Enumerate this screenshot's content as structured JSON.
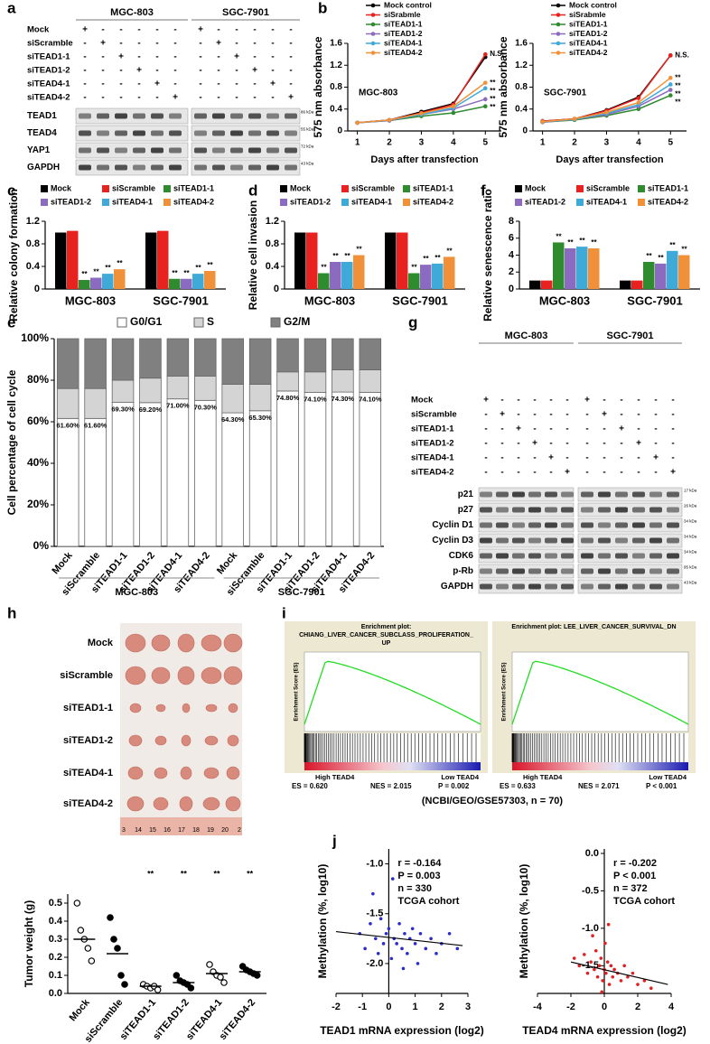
{
  "chart_data": [
    {
      "type": "line",
      "label": "MGC-803",
      "x": [
        1,
        2,
        3,
        4,
        5
      ],
      "xlim": [
        0.7,
        5.5
      ],
      "xticks": [
        1,
        2,
        3,
        4,
        5
      ],
      "ylim": [
        0,
        1.6
      ],
      "yticks": [
        0,
        0.4,
        0.8,
        1.2,
        1.6
      ],
      "xlabel": "Days after transfection",
      "ylabel": "575 nm absorbance",
      "series": [
        {
          "name": "Mock control",
          "color": "#000000",
          "values": [
            0.15,
            0.2,
            0.35,
            0.5,
            1.35
          ]
        },
        {
          "name": "siSrabmle",
          "color": "#e8231f",
          "values": [
            0.15,
            0.2,
            0.33,
            0.48,
            1.4
          ]
        },
        {
          "name": "siTEAD1-1",
          "color": "#2e8b2e",
          "values": [
            0.15,
            0.19,
            0.27,
            0.33,
            0.45
          ]
        },
        {
          "name": "siTEAD1-2",
          "color": "#8a6bbf",
          "values": [
            0.15,
            0.19,
            0.3,
            0.4,
            0.58
          ]
        },
        {
          "name": "siTEAD4-1",
          "color": "#3fa9d8",
          "values": [
            0.15,
            0.2,
            0.3,
            0.42,
            0.78
          ]
        },
        {
          "name": "siTEAD4-2",
          "color": "#f0913a",
          "values": [
            0.15,
            0.2,
            0.32,
            0.45,
            0.88
          ]
        }
      ],
      "annotations": [
        "N.S.",
        "**",
        "**",
        "**",
        "**"
      ]
    },
    {
      "type": "line",
      "label": "SGC-7901",
      "x": [
        1,
        2,
        3,
        4,
        5
      ],
      "xlim": [
        0.7,
        5.5
      ],
      "xticks": [
        1,
        2,
        3,
        4,
        5
      ],
      "ylim": [
        0,
        1.6
      ],
      "yticks": [
        0,
        0.4,
        0.8,
        1.2,
        1.6
      ],
      "xlabel": "Days after transfection",
      "ylabel": "575 nm absorbance",
      "series": [
        {
          "name": "Mock control",
          "color": "#000000",
          "values": [
            0.18,
            0.22,
            0.38,
            0.62,
            1.38
          ]
        },
        {
          "name": "siSrabmle",
          "color": "#e8231f",
          "values": [
            0.18,
            0.22,
            0.37,
            0.6,
            1.38
          ]
        },
        {
          "name": "siTEAD1-1",
          "color": "#2e8b2e",
          "values": [
            0.16,
            0.2,
            0.28,
            0.4,
            0.65
          ]
        },
        {
          "name": "siTEAD1-2",
          "color": "#8a6bbf",
          "values": [
            0.16,
            0.21,
            0.3,
            0.45,
            0.75
          ]
        },
        {
          "name": "siTEAD4-1",
          "color": "#3fa9d8",
          "values": [
            0.17,
            0.21,
            0.32,
            0.48,
            0.85
          ]
        },
        {
          "name": "siTEAD4-2",
          "color": "#f0913a",
          "values": [
            0.17,
            0.22,
            0.34,
            0.52,
            0.97
          ]
        }
      ],
      "annotations": [
        "N.S.",
        "**",
        "**",
        "**",
        "**"
      ]
    },
    {
      "type": "bar",
      "categories": [
        "MGC-803",
        "SGC-7901"
      ],
      "ylabel": "Relative colony formation",
      "ylim": [
        0,
        1.2
      ],
      "yticks": [
        0,
        0.4,
        0.8,
        1.2
      ],
      "series": [
        {
          "name": "Mock",
          "color": "#000000",
          "values": [
            1.0,
            1.0
          ]
        },
        {
          "name": "siScramble",
          "color": "#e8231f",
          "values": [
            1.03,
            1.03
          ]
        },
        {
          "name": "siTEAD1-1",
          "color": "#2e8b2e",
          "values": [
            0.16,
            0.18
          ]
        },
        {
          "name": "siTEAD1-2",
          "color": "#8a6bbf",
          "values": [
            0.2,
            0.18
          ]
        },
        {
          "name": "siTEAD4-1",
          "color": "#3fa9d8",
          "values": [
            0.27,
            0.27
          ]
        },
        {
          "name": "siTEAD4-2",
          "color": "#f0913a",
          "values": [
            0.35,
            0.32
          ]
        }
      ],
      "annotations": [
        "**",
        "**",
        "**",
        "**",
        "**",
        "**",
        "**",
        "**"
      ]
    },
    {
      "type": "bar",
      "categories": [
        "MGC-803",
        "SGC-7901"
      ],
      "ylabel": "Relative cell invasion",
      "ylim": [
        0,
        1.2
      ],
      "yticks": [
        0,
        0.4,
        0.8,
        1.2
      ],
      "series": [
        {
          "name": "Mock",
          "color": "#000000",
          "values": [
            1.0,
            1.0
          ]
        },
        {
          "name": "siScramble",
          "color": "#e8231f",
          "values": [
            1.0,
            1.0
          ]
        },
        {
          "name": "siTEAD1-1",
          "color": "#2e8b2e",
          "values": [
            0.28,
            0.28
          ]
        },
        {
          "name": "siTEAD1-2",
          "color": "#8a6bbf",
          "values": [
            0.48,
            0.43
          ]
        },
        {
          "name": "siTEAD4-1",
          "color": "#3fa9d8",
          "values": [
            0.48,
            0.45
          ]
        },
        {
          "name": "siTEAD4-2",
          "color": "#f0913a",
          "values": [
            0.6,
            0.57
          ]
        }
      ],
      "annotations": [
        "**",
        "**",
        "**",
        "**",
        "**",
        "**",
        "**",
        "**"
      ]
    },
    {
      "type": "bar",
      "categories": [
        "MGC-803",
        "SGC-7901"
      ],
      "ylabel": "Relative senescence ratio",
      "ylim": [
        0,
        8
      ],
      "yticks": [
        0,
        2,
        4,
        6,
        8
      ],
      "series": [
        {
          "name": "Mock",
          "color": "#000000",
          "values": [
            1,
            1
          ]
        },
        {
          "name": "siScramble",
          "color": "#e8231f",
          "values": [
            1,
            1
          ]
        },
        {
          "name": "siTEAD1-1",
          "color": "#2e8b2e",
          "values": [
            5.5,
            3.2
          ]
        },
        {
          "name": "siTEAD1-2",
          "color": "#8a6bbf",
          "values": [
            4.8,
            3.0
          ]
        },
        {
          "name": "siTEAD4-1",
          "color": "#3fa9d8",
          "values": [
            5.0,
            4.5
          ]
        },
        {
          "name": "siTEAD4-2",
          "color": "#f0913a",
          "values": [
            4.8,
            4.0
          ]
        }
      ],
      "annotations": [
        "**",
        "**",
        "**",
        "**",
        "**",
        "**",
        "**",
        "**"
      ]
    },
    {
      "type": "stacked",
      "categories": [
        "Mock",
        "siScramble",
        "siTEAD1-1",
        "siTEAD1-2",
        "siTEAD4-1",
        "siTEAD4-2",
        "Mock",
        "siScramble",
        "siTEAD1-1",
        "siTEAD1-2",
        "siTEAD4-1",
        "siTEAD4-2"
      ],
      "groups": [
        "MGC-803",
        "SGC-7901"
      ],
      "ylabel": "Cell percentage of cell cycle",
      "ylim": [
        0,
        100
      ],
      "yticks": [
        {
          "value": 0,
          "label": "0%"
        },
        {
          "value": 20,
          "label": "20%"
        },
        {
          "value": 40,
          "label": "40%"
        },
        {
          "value": 60,
          "label": "60%"
        },
        {
          "value": 80,
          "label": "80%"
        },
        {
          "value": 100,
          "label": "100%"
        }
      ],
      "series": [
        {
          "name": "G0/G1",
          "color": "#ffffff",
          "values": [
            61.6,
            61.6,
            69.3,
            69.2,
            71.0,
            70.3,
            64.3,
            65.3,
            74.8,
            74.1,
            74.3,
            74.1
          ],
          "value_labels": [
            "61.60%",
            "61.60%",
            "69.30%",
            "69.20%",
            "71.00%",
            "70.30%",
            "64.30%",
            "65.30%",
            "74.80%",
            "74.10%",
            "74.30%",
            "74.10%"
          ]
        },
        {
          "name": "S",
          "color": "#d4d4d4",
          "values": [
            14.4,
            14.4,
            10.7,
            11.8,
            11.0,
            11.7,
            13.7,
            12.7,
            9.2,
            9.9,
            10.7,
            10.9
          ]
        },
        {
          "name": "G2/M",
          "color": "#808080",
          "values": [
            24.0,
            24.0,
            20.0,
            19.0,
            18.0,
            18.0,
            22.0,
            22.0,
            16.0,
            16.0,
            15.0,
            15.0
          ]
        }
      ]
    },
    {
      "type": "dot",
      "categories": [
        "Mock",
        "siScramble",
        "siTEAD1-1",
        "siTEAD1-2",
        "siTEAD4-1",
        "siTEAD4-2"
      ],
      "ylabel": "Tumor weight (g)",
      "ylim": [
        0,
        0.55
      ],
      "yticks": [
        {
          "value": 0,
          "label": "0.0"
        },
        0.1,
        0.2,
        0.3,
        0.4,
        0.5
      ],
      "points": [
        [
          0.5,
          0.35,
          0.3,
          0.25,
          0.18
        ],
        [
          0.42,
          0.3,
          0.25,
          0.1,
          0.05
        ],
        [
          0.05,
          0.04,
          0.03,
          0.04,
          0.02
        ],
        [
          0.1,
          0.07,
          0.06,
          0.05,
          0.03
        ],
        [
          0.16,
          0.12,
          0.1,
          0.09,
          0.06
        ],
        [
          0.15,
          0.13,
          0.12,
          0.11,
          0.1
        ]
      ],
      "means": [
        0.3,
        0.22,
        0.04,
        0.06,
        0.11,
        0.12
      ],
      "annotations": [
        "**",
        "**",
        "**",
        "**"
      ]
    },
    {
      "type": "scatter",
      "color": "#2b2bd0",
      "xlim": [
        -2,
        3
      ],
      "xticks": [
        -2,
        -1,
        0,
        1,
        2,
        3
      ],
      "ylim": [
        -2.3,
        -0.85
      ],
      "yticks": [
        {
          "value": -1,
          "label": "-1.0"
        },
        -1.5,
        {
          "value": -2,
          "label": "-2.0"
        }
      ],
      "xlabel": "TEAD1 mRNA expression (log2)",
      "ylabel": "Methylation (%, log10)",
      "x": [
        -1.1,
        -0.9,
        -0.7,
        -0.5,
        -0.4,
        -0.3,
        -0.2,
        -0.1,
        0,
        0.1,
        0.2,
        0.3,
        0.4,
        0.5,
        0.6,
        0.7,
        0.8,
        0.9,
        1.0,
        1.1,
        1.2,
        1.4,
        1.6,
        1.8,
        2.0,
        2.3,
        2.6,
        -0.6,
        0.15,
        0.55
      ],
      "y": [
        -1.7,
        -1.85,
        -1.6,
        -1.75,
        -1.9,
        -1.55,
        -1.8,
        -1.7,
        -1.65,
        -1.95,
        -1.75,
        -1.8,
        -1.6,
        -1.85,
        -1.7,
        -1.9,
        -1.75,
        -1.65,
        -1.8,
        -2.0,
        -1.7,
        -1.85,
        -1.75,
        -1.9,
        -1.8,
        -1.7,
        -1.85,
        -1.3,
        -1.15,
        -2.05
      ],
      "fit_line": {
        "x": [
          -2,
          2.8
        ],
        "y": [
          -1.68,
          -1.82
        ]
      },
      "annotations": [
        "r = -0.164",
        "P = 0.003",
        "n = 330",
        "TCGA cohort"
      ]
    },
    {
      "type": "scatter",
      "color": "#e02020",
      "xlim": [
        -4,
        4
      ],
      "xticks": [
        -4,
        -2,
        0,
        2,
        4
      ],
      "ylim": [
        -1.87,
        0.06
      ],
      "yticks": [
        {
          "value": 0,
          "label": "0.0"
        },
        -0.5,
        {
          "value": -1,
          "label": "-1.0"
        },
        -1.5
      ],
      "xlabel": "TEAD4 mRNA expression (log2)",
      "ylabel": "Methylation (%, log10)",
      "x": [
        -1.8,
        -1.5,
        -1.2,
        -1.0,
        -0.8,
        -0.6,
        -0.5,
        -0.4,
        -0.3,
        -0.2,
        -0.1,
        0,
        0.1,
        0.2,
        0.3,
        0.4,
        0.5,
        0.6,
        0.8,
        1.0,
        1.2,
        1.4,
        1.7,
        2.0,
        2.4,
        2.8,
        -0.7,
        0.25,
        0.05,
        -0.15
      ],
      "y": [
        -1.4,
        -1.5,
        -1.35,
        -1.6,
        -1.45,
        -1.55,
        -1.3,
        -1.65,
        -1.5,
        -1.4,
        -1.7,
        -1.55,
        -1.6,
        -1.45,
        -1.75,
        -1.5,
        -1.65,
        -1.55,
        -1.6,
        -1.7,
        -1.5,
        -1.65,
        -1.6,
        -1.75,
        -1.7,
        -1.8,
        -1.1,
        -0.95,
        -1.2,
        -1.85
      ],
      "fit_line": {
        "x": [
          -2,
          3.8
        ],
        "y": [
          -1.45,
          -1.75
        ]
      },
      "annotations": [
        "r = -0.202",
        "P < 0.001",
        "n = 372",
        "TCGA cohort"
      ]
    }
  ],
  "panel_letters": [
    "a",
    "b",
    "c",
    "d",
    "e",
    "f",
    "g",
    "h",
    "i",
    "j"
  ],
  "blot_a": {
    "groups": [
      "MGC-803",
      "SGC-7901"
    ],
    "rows": [
      "Mock",
      "siScramble",
      "siTEAD1-1",
      "siTEAD1-2",
      "siTEAD4-1",
      "siTEAD4-2"
    ],
    "signs": [
      [
        "+",
        "-",
        "-",
        "-",
        "-",
        "-",
        "+",
        "-",
        "-",
        "-",
        "-",
        "-"
      ],
      [
        "-",
        "+",
        "-",
        "-",
        "-",
        "-",
        "-",
        "+",
        "-",
        "-",
        "-",
        "-"
      ],
      [
        "-",
        "-",
        "+",
        "-",
        "-",
        "-",
        "-",
        "-",
        "+",
        "-",
        "-",
        "-"
      ],
      [
        "-",
        "-",
        "-",
        "+",
        "-",
        "-",
        "-",
        "-",
        "-",
        "+",
        "-",
        "-"
      ],
      [
        "-",
        "-",
        "-",
        "-",
        "+",
        "-",
        "-",
        "-",
        "-",
        "-",
        "+",
        "-"
      ],
      [
        "-",
        "-",
        "-",
        "-",
        "-",
        "+",
        "-",
        "-",
        "-",
        "-",
        "-",
        "+"
      ]
    ],
    "bands": [
      "TEAD1",
      "TEAD4",
      "YAP1",
      "GAPDH"
    ],
    "sizes": [
      "86 kDa",
      "55 kDa",
      "72 kDa",
      "43 kDa"
    ]
  },
  "blot_g": {
    "groups": [
      "MGC-803",
      "SGC-7901"
    ],
    "rows": [
      "Mock",
      "siScramble",
      "siTEAD1-1",
      "siTEAD1-2",
      "siTEAD4-1",
      "siTEAD4-2"
    ],
    "signs": [
      [
        "+",
        "-",
        "-",
        "-",
        "-",
        "-",
        "+",
        "-",
        "-",
        "-",
        "-",
        "-"
      ],
      [
        "-",
        "+",
        "-",
        "-",
        "-",
        "-",
        "-",
        "+",
        "-",
        "-",
        "-",
        "-"
      ],
      [
        "-",
        "-",
        "+",
        "-",
        "-",
        "-",
        "-",
        "-",
        "+",
        "-",
        "-",
        "-"
      ],
      [
        "-",
        "-",
        "-",
        "+",
        "-",
        "-",
        "-",
        "-",
        "-",
        "+",
        "-",
        "-"
      ],
      [
        "-",
        "-",
        "-",
        "-",
        "+",
        "-",
        "-",
        "-",
        "-",
        "-",
        "+",
        "-"
      ],
      [
        "-",
        "-",
        "-",
        "-",
        "-",
        "+",
        "-",
        "-",
        "-",
        "-",
        "-",
        "+"
      ]
    ],
    "bands": [
      "p21",
      "p27",
      "Cyclin D1",
      "Cyclin D3",
      "CDK6",
      "p-Rb",
      "GAPDH"
    ],
    "sizes": [
      "17 kDa",
      "26 kDa",
      "34 kDa",
      "34 kDa",
      "34 kDa",
      "95 kDa",
      "43 kDa"
    ]
  },
  "photo_h": {
    "rows": [
      "Mock",
      "siScramble",
      "siTEAD1-1",
      "siTEAD1-2",
      "siTEAD4-1",
      "siTEAD4-2"
    ],
    "ruler": [
      "3",
      "14",
      "15",
      "16",
      "17",
      "18",
      "19",
      "20",
      "2"
    ]
  },
  "gsea_i": {
    "plots": [
      {
        "title_lines": [
          "Enrichment plot:",
          "CHIANG_LIVER_CANCER_SUBCLASS_PROLIFERATION_",
          "UP"
        ],
        "ylabel": "Enrichment Score (ES)",
        "high": "High TEAD4",
        "low": "Low TEAD4",
        "es": "ES = 0.620",
        "nes": "NES = 2.015",
        "p": "P = 0.002"
      },
      {
        "title_lines": [
          "Enrichment plot: LEE_LIVER_CANCER_SURVIVAL_DN"
        ],
        "ylabel": "Enrichment Score (ES)",
        "high": "High TEAD4",
        "low": "Low TEAD4",
        "es": "ES = 0.633",
        "nes": "NES = 2.071",
        "p": "P < 0.001"
      }
    ],
    "caption": "(NCBI/GEO/GSE57303, n = 70)"
  }
}
